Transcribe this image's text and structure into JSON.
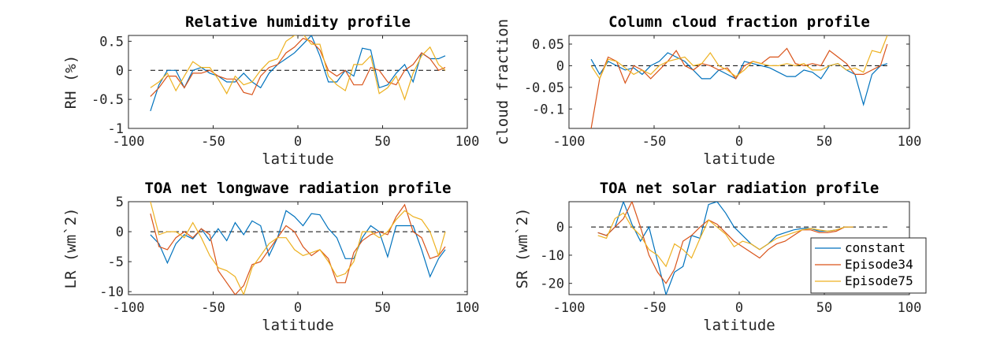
{
  "chart_data": [
    {
      "type": "line",
      "title": "Relative humidity profile",
      "xlabel": "latitude",
      "ylabel": "RH (%)",
      "xlim": [
        -100,
        100
      ],
      "ylim": [
        -1,
        0.6
      ],
      "xticks": [
        -100,
        -50,
        0,
        50,
        100
      ],
      "xtick_labels": [
        "-100",
        "-50",
        "0",
        "50",
        "100"
      ],
      "yticks": [
        -1,
        -0.5,
        0,
        0.5
      ],
      "ytick_labels": [
        "-1",
        "-0.5",
        "0",
        "0.5"
      ],
      "x": [
        -87,
        -82,
        -77,
        -72,
        -67,
        -62,
        -57,
        -52,
        -47,
        -42,
        -37,
        -32,
        -27,
        -22,
        -17,
        -12,
        -7,
        -2,
        3,
        8,
        13,
        18,
        23,
        28,
        33,
        38,
        43,
        48,
        53,
        58,
        63,
        68,
        73,
        78,
        83,
        87
      ],
      "series": [
        {
          "name": "constant",
          "color": "#0072BD",
          "values": [
            -0.7,
            -0.25,
            0.0,
            0.0,
            -0.3,
            0.0,
            0.05,
            -0.05,
            -0.1,
            -0.2,
            -0.2,
            -0.05,
            -0.2,
            -0.3,
            -0.05,
            0.1,
            0.2,
            0.3,
            0.45,
            0.6,
            0.25,
            -0.2,
            -0.2,
            0.0,
            -0.1,
            0.38,
            0.35,
            -0.3,
            -0.25,
            -0.05,
            0.1,
            -0.2,
            0.3,
            0.2,
            0.2,
            0.25
          ]
        },
        {
          "name": "Episode34",
          "color": "#D95319",
          "values": [
            -0.45,
            -0.3,
            -0.1,
            -0.1,
            -0.3,
            -0.05,
            -0.05,
            0.0,
            -0.1,
            -0.15,
            -0.15,
            -0.38,
            -0.42,
            -0.1,
            0.05,
            0.1,
            0.3,
            0.4,
            0.55,
            0.5,
            0.35,
            0.0,
            -0.1,
            0.0,
            -0.25,
            -0.25,
            0.05,
            0.0,
            -0.2,
            -0.25,
            0.0,
            0.1,
            0.3,
            0.2,
            0.0,
            0.05
          ]
        },
        {
          "name": "Episode75",
          "color": "#EDB120",
          "values": [
            -0.3,
            -0.2,
            -0.05,
            -0.35,
            -0.1,
            0.15,
            0.05,
            0.05,
            -0.15,
            -0.4,
            -0.1,
            -0.25,
            -0.2,
            0.0,
            0.15,
            0.2,
            0.5,
            0.6,
            0.62,
            0.45,
            0.45,
            -0.1,
            -0.25,
            -0.35,
            0.1,
            0.1,
            0.25,
            -0.4,
            -0.3,
            -0.1,
            -0.5,
            -0.05,
            0.25,
            0.4,
            0.1,
            0.0
          ]
        }
      ]
    },
    {
      "type": "line",
      "title": "Column cloud fraction profile",
      "xlabel": "latitude",
      "ylabel": "cloud fraction",
      "xlim": [
        -100,
        100
      ],
      "ylim": [
        -0.145,
        0.07
      ],
      "xticks": [
        -100,
        -50,
        0,
        50,
        100
      ],
      "xtick_labels": [
        "-100",
        "-50",
        "0",
        "50",
        "100"
      ],
      "yticks": [
        -0.1,
        -0.05,
        0,
        0.05
      ],
      "ytick_labels": [
        "-0.1",
        "-0.05",
        "0",
        "0.05"
      ],
      "x": [
        -87,
        -82,
        -77,
        -72,
        -67,
        -62,
        -57,
        -52,
        -47,
        -42,
        -37,
        -32,
        -27,
        -22,
        -17,
        -12,
        -7,
        -2,
        3,
        8,
        13,
        18,
        23,
        28,
        33,
        38,
        43,
        48,
        53,
        58,
        63,
        68,
        73,
        78,
        83,
        87
      ],
      "series": [
        {
          "name": "constant",
          "color": "#0072BD",
          "values": [
            0.015,
            -0.02,
            0.01,
            0.0,
            -0.01,
            -0.005,
            -0.02,
            0.0,
            0.01,
            0.03,
            0.02,
            0.01,
            -0.01,
            -0.03,
            -0.03,
            -0.01,
            -0.02,
            -0.03,
            0.01,
            0.005,
            0.0,
            -0.005,
            -0.015,
            -0.025,
            -0.025,
            -0.01,
            -0.015,
            -0.03,
            0.0,
            0.005,
            -0.01,
            -0.02,
            -0.09,
            -0.02,
            0.0,
            0.005
          ]
        },
        {
          "name": "Episode34",
          "color": "#D95319",
          "values": [
            -0.145,
            -0.03,
            0.02,
            0.01,
            -0.04,
            0.0,
            -0.01,
            -0.03,
            -0.01,
            0.01,
            0.035,
            0.0,
            -0.01,
            0.005,
            0.0,
            -0.01,
            -0.005,
            -0.03,
            0.0,
            0.01,
            0.005,
            0.02,
            0.02,
            0.04,
            0.005,
            0.0,
            0.005,
            0.0,
            0.035,
            0.02,
            0.005,
            -0.02,
            -0.02,
            -0.01,
            0.0,
            0.05
          ]
        },
        {
          "name": "Episode75",
          "color": "#EDB120",
          "values": [
            0.0,
            -0.03,
            0.015,
            0.01,
            -0.005,
            -0.02,
            -0.01,
            -0.02,
            0.0,
            0.01,
            0.015,
            0.02,
            0.0,
            0.005,
            0.03,
            0.0,
            -0.01,
            -0.025,
            -0.01,
            0.01,
            0.005,
            0.0,
            0.0,
            0.005,
            0.0,
            0.005,
            -0.01,
            -0.01,
            0.0,
            0.005,
            -0.01,
            -0.005,
            -0.015,
            0.035,
            0.03,
            0.07
          ]
        }
      ]
    },
    {
      "type": "line",
      "title": "TOA net longwave radiation profile",
      "xlabel": "latitude",
      "ylabel": "LR (wm`2)",
      "xlim": [
        -100,
        100
      ],
      "ylim": [
        -10.5,
        5
      ],
      "xticks": [
        -100,
        -50,
        0,
        50,
        100
      ],
      "xtick_labels": [
        "-100",
        "-50",
        "0",
        "50",
        "100"
      ],
      "yticks": [
        -10,
        -5,
        0,
        5
      ],
      "ytick_labels": [
        "-10",
        "-5",
        "0",
        "5"
      ],
      "x": [
        -87,
        -82,
        -77,
        -72,
        -67,
        -62,
        -57,
        -52,
        -47,
        -42,
        -37,
        -32,
        -27,
        -22,
        -17,
        -12,
        -7,
        -2,
        3,
        8,
        13,
        18,
        23,
        28,
        33,
        38,
        43,
        48,
        53,
        58,
        63,
        68,
        73,
        78,
        83,
        87
      ],
      "series": [
        {
          "name": "constant",
          "color": "#0072BD",
          "values": [
            -0.5,
            -2.0,
            -5.2,
            -2.0,
            -0.5,
            -1.2,
            0.5,
            -1.5,
            0.5,
            -1.5,
            1.5,
            -0.5,
            1.8,
            1.0,
            -4.0,
            -1.0,
            3.5,
            2.5,
            1.0,
            3.0,
            2.8,
            0.5,
            -1.0,
            -4.5,
            -4.5,
            -1.0,
            1.0,
            0.0,
            -4.2,
            1.0,
            1.0,
            1.0,
            -3.0,
            -7.5,
            -4.5,
            -3.0
          ]
        },
        {
          "name": "Episode34",
          "color": "#D95319",
          "values": [
            3.0,
            -2.5,
            -3.0,
            -1.0,
            0.0,
            -1.0,
            0.5,
            -0.5,
            -6.5,
            -8.5,
            -10.5,
            -9.0,
            -5.5,
            -5.0,
            -3.0,
            -1.0,
            1.0,
            0.0,
            -2.5,
            -4.0,
            -3.0,
            -4.5,
            -8.5,
            -8.5,
            -3.5,
            -1.5,
            -0.5,
            0.0,
            -0.5,
            2.5,
            4.5,
            0.0,
            -1.0,
            -4.5,
            -4.0,
            -2.5
          ]
        },
        {
          "name": "Episode75",
          "color": "#EDB120",
          "values": [
            5.0,
            -0.5,
            0.0,
            0.0,
            -1.0,
            1.5,
            -1.0,
            -4.0,
            -6.0,
            -6.5,
            -7.5,
            -10.5,
            -6.0,
            -4.0,
            -2.0,
            -1.0,
            -1.0,
            -3.0,
            -4.0,
            -3.5,
            -3.0,
            -5.0,
            -7.5,
            -7.0,
            -5.0,
            0.0,
            0.0,
            -1.0,
            0.0,
            2.0,
            3.5,
            2.5,
            2.0,
            0.0,
            -4.0,
            0.0
          ]
        }
      ]
    },
    {
      "type": "line",
      "title": "TOA net solar radiation profile",
      "xlabel": "latitude",
      "ylabel": "SR (wm`2)",
      "xlim": [
        -100,
        100
      ],
      "ylim": [
        -24,
        9
      ],
      "xticks": [
        -100,
        -50,
        0,
        50,
        100
      ],
      "xtick_labels": [
        "-100",
        "-50",
        "0",
        "50",
        "100"
      ],
      "yticks": [
        -20,
        -10,
        0
      ],
      "ytick_labels": [
        "-20",
        "-10",
        "0"
      ],
      "x": [
        -83,
        -78,
        -73,
        -68,
        -63,
        -58,
        -53,
        -48,
        -43,
        -38,
        -33,
        -28,
        -23,
        -18,
        -13,
        -8,
        -3,
        2,
        7,
        12,
        17,
        22,
        27,
        32,
        37,
        42,
        47,
        52,
        57,
        62,
        67
      ],
      "series": [
        {
          "name": "constant",
          "color": "#0072BD",
          "values": [
            -2.0,
            -3.0,
            0.0,
            9.0,
            1.0,
            -5.0,
            0.0,
            -12.0,
            -24.0,
            -16.0,
            -14.0,
            -3.0,
            -4.0,
            8.0,
            9.0,
            5.0,
            0.0,
            -3.0,
            -6.0,
            -8.0,
            -6.0,
            -3.0,
            -2.0,
            -1.0,
            -0.5,
            -0.5,
            -1.5,
            -1.5,
            -1.0,
            0.0,
            0.0
          ]
        },
        {
          "name": "Episode34",
          "color": "#D95319",
          "values": [
            -2.0,
            -3.0,
            0.0,
            3.0,
            9.0,
            0.0,
            -10.0,
            -16.0,
            -20.0,
            -15.0,
            -5.0,
            -3.0,
            0.0,
            2.5,
            1.0,
            -2.0,
            -5.0,
            -7.0,
            -9.0,
            -11.0,
            -8.0,
            -6.0,
            -5.0,
            -3.0,
            -1.0,
            -1.0,
            -2.0,
            -2.0,
            -1.5,
            0.0,
            0.0
          ]
        },
        {
          "name": "Episode75",
          "color": "#EDB120",
          "values": [
            -3.0,
            -4.0,
            3.0,
            5.0,
            0.0,
            -3.0,
            -8.0,
            -10.0,
            -14.0,
            -6.0,
            -8.0,
            -11.0,
            -4.0,
            2.5,
            0.0,
            -2.5,
            -7.0,
            -5.0,
            -6.0,
            -8.0,
            -6.0,
            -4.0,
            -3.0,
            -2.0,
            -1.0,
            -0.5,
            -1.0,
            -1.5,
            -1.0,
            0.0,
            0.0
          ]
        }
      ],
      "legend": {
        "placement": "bottom-right",
        "entries": [
          "constant",
          "Episode34",
          "Episode75"
        ]
      }
    }
  ]
}
